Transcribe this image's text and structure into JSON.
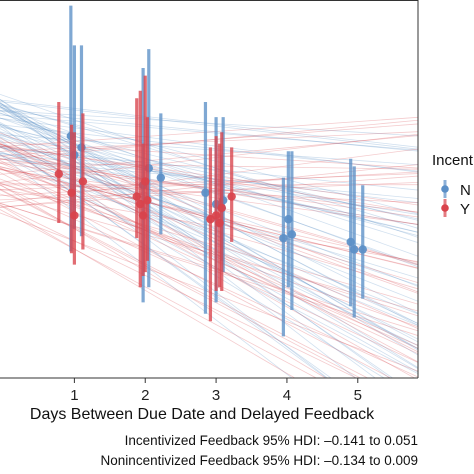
{
  "chart_data": {
    "type": "scatter",
    "xlabel": "Days Between Due Date and Delayed Feedback",
    "x_ticks": [
      "1",
      "2",
      "3",
      "4",
      "5"
    ],
    "xlim": [
      -0.05,
      5.85
    ],
    "ylim": [
      0,
      1
    ],
    "grid": false,
    "legend_position": "right (clipped)",
    "legend": {
      "title": "Incent",
      "entries": [
        {
          "label": "N",
          "color": "#5b8fc7"
        },
        {
          "label": "Y",
          "color": "#d9434c"
        }
      ]
    },
    "colors": {
      "no": "#5b8fc7",
      "yes": "#d9434c"
    },
    "series": [
      {
        "name": "N",
        "color": "#5b8fc7",
        "points": [
          {
            "x": 0.95,
            "y": 0.64,
            "lo": 0.335,
            "hi": 0.985
          },
          {
            "x": 1.0,
            "y": 0.59,
            "lo": 0.395,
            "hi": 0.88
          },
          {
            "x": 1.1,
            "y": 0.61,
            "lo": 0.375,
            "hi": 0.88
          },
          {
            "x": 1.97,
            "y": 0.51,
            "lo": 0.2,
            "hi": 0.82
          },
          {
            "x": 2.05,
            "y": 0.555,
            "lo": 0.24,
            "hi": 0.87
          },
          {
            "x": 2.22,
            "y": 0.53,
            "lo": 0.38,
            "hi": 0.7
          },
          {
            "x": 2.85,
            "y": 0.49,
            "lo": 0.17,
            "hi": 0.73
          },
          {
            "x": 3.0,
            "y": 0.46,
            "lo": 0.2,
            "hi": 0.69
          },
          {
            "x": 3.08,
            "y": 0.45,
            "lo": 0.31,
            "hi": 0.59
          },
          {
            "x": 3.1,
            "y": 0.47,
            "lo": 0.28,
            "hi": 0.69
          },
          {
            "x": 3.95,
            "y": 0.37,
            "lo": 0.11,
            "hi": 0.53
          },
          {
            "x": 4.02,
            "y": 0.42,
            "lo": 0.24,
            "hi": 0.6
          },
          {
            "x": 4.07,
            "y": 0.38,
            "lo": 0.18,
            "hi": 0.6
          },
          {
            "x": 4.9,
            "y": 0.36,
            "lo": 0.19,
            "hi": 0.58
          },
          {
            "x": 4.95,
            "y": 0.34,
            "lo": 0.16,
            "hi": 0.56
          },
          {
            "x": 5.07,
            "y": 0.34,
            "lo": 0.21,
            "hi": 0.51
          }
        ]
      },
      {
        "name": "Y",
        "color": "#d9434c",
        "points": [
          {
            "x": 0.78,
            "y": 0.54,
            "lo": 0.41,
            "hi": 0.73
          },
          {
            "x": 0.96,
            "y": 0.49,
            "lo": 0.33,
            "hi": 0.67
          },
          {
            "x": 1.0,
            "y": 0.43,
            "lo": 0.3,
            "hi": 0.65
          },
          {
            "x": 1.12,
            "y": 0.52,
            "lo": 0.34,
            "hi": 0.7
          },
          {
            "x": 1.88,
            "y": 0.48,
            "lo": 0.37,
            "hi": 0.74
          },
          {
            "x": 1.93,
            "y": 0.46,
            "lo": 0.24,
            "hi": 0.76
          },
          {
            "x": 1.97,
            "y": 0.43,
            "lo": 0.27,
            "hi": 0.62
          },
          {
            "x": 2.0,
            "y": 0.52,
            "lo": 0.28,
            "hi": 0.8
          },
          {
            "x": 2.03,
            "y": 0.47,
            "lo": 0.31,
            "hi": 0.69
          },
          {
            "x": 2.92,
            "y": 0.42,
            "lo": 0.15,
            "hi": 0.61
          },
          {
            "x": 3.0,
            "y": 0.43,
            "lo": 0.23,
            "hi": 0.64
          },
          {
            "x": 3.05,
            "y": 0.41,
            "lo": 0.24,
            "hi": 0.62
          },
          {
            "x": 3.08,
            "y": 0.45,
            "lo": 0.23,
            "hi": 0.65
          },
          {
            "x": 3.22,
            "y": 0.48,
            "lo": 0.36,
            "hi": 0.61
          }
        ]
      }
    ]
  },
  "annotations": {
    "hdi_incentivized": "Incentivized Feedback 95% HDI: –0.141 to 0.051",
    "hdi_nonincentivized": "Nonincentivized Feedback 95% HDI: –0.134 to 0.009"
  }
}
